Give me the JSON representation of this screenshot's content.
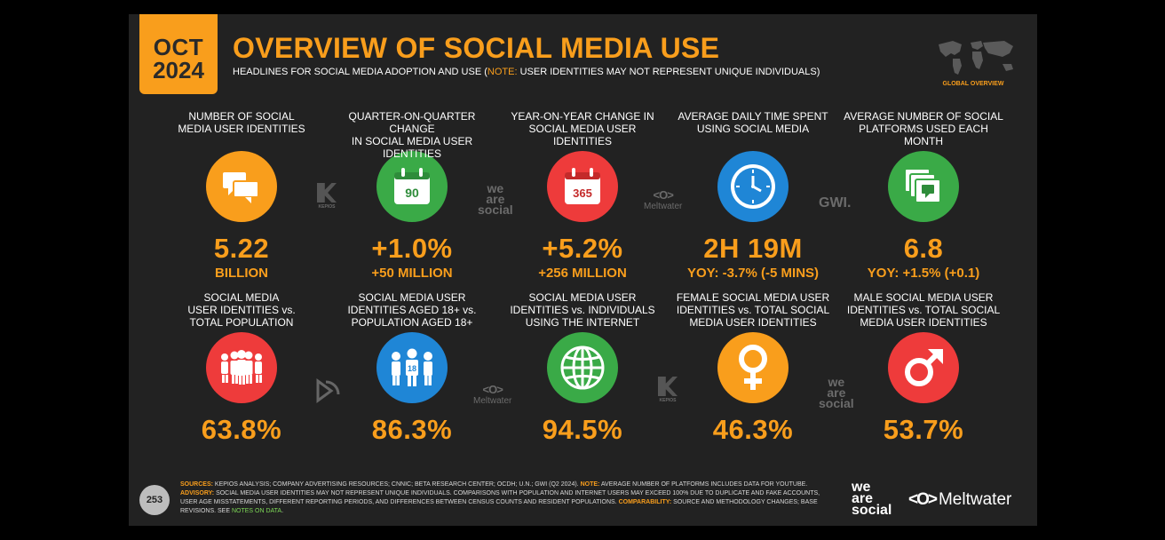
{
  "header": {
    "month": "OCT",
    "year": "2024",
    "title": "OVERVIEW OF SOCIAL MEDIA USE",
    "subtitle_prefix": "HEADLINES FOR SOCIAL MEDIA ADOPTION AND USE (",
    "subtitle_note_label": "NOTE:",
    "subtitle_suffix": " USER IDENTITIES MAY NOT REPRESENT UNIQUE INDIVIDUALS)",
    "map_label": "GLOBAL OVERVIEW"
  },
  "row1": [
    {
      "label": "NUMBER OF SOCIAL\nMEDIA USER IDENTITIES",
      "icon": "chat-bubbles-icon",
      "value": "5.22",
      "sub": "BILLION"
    },
    {
      "label": "QUARTER-ON-QUARTER CHANGE\nIN SOCIAL MEDIA USER IDENTITIES",
      "icon": "calendar-90-icon",
      "icon_text": "90",
      "value": "+1.0%",
      "sub": "+50 MILLION"
    },
    {
      "label": "YEAR-ON-YEAR CHANGE IN\nSOCIAL MEDIA USER IDENTITIES",
      "icon": "calendar-365-icon",
      "icon_text": "365",
      "value": "+5.2%",
      "sub": "+256 MILLION"
    },
    {
      "label": "AVERAGE DAILY TIME SPENT\nUSING SOCIAL MEDIA",
      "icon": "clock-icon",
      "value": "2H 19M",
      "sub": "YOY: -3.7% (-5 MINS)"
    },
    {
      "label": "AVERAGE NUMBER OF SOCIAL\nPLATFORMS USED EACH MONTH",
      "icon": "stacked-screens-icon",
      "value": "6.8",
      "sub": "YOY: +1.5% (+0.1)"
    }
  ],
  "row2": [
    {
      "label": "SOCIAL MEDIA\nUSER IDENTITIES vs.\nTOTAL POPULATION",
      "icon": "crowd-icon",
      "value": "63.8%"
    },
    {
      "label": "SOCIAL MEDIA USER\nIDENTITIES AGED 18+ vs.\nPOPULATION AGED 18+",
      "icon": "adults-18-icon",
      "icon_text": "18",
      "value": "86.3%"
    },
    {
      "label": "SOCIAL MEDIA USER\nIDENTITIES vs. INDIVIDUALS\nUSING THE INTERNET",
      "icon": "globe-icon",
      "value": "94.5%"
    },
    {
      "label": "FEMALE SOCIAL MEDIA USER\nIDENTITIES vs. TOTAL SOCIAL\nMEDIA USER IDENTITIES",
      "icon": "female-symbol-icon",
      "value": "46.3%"
    },
    {
      "label": "MALE SOCIAL MEDIA USER\nIDENTITIES vs. TOTAL SOCIAL\nMEDIA USER IDENTITIES",
      "icon": "male-symbol-icon",
      "value": "53.7%"
    }
  ],
  "watermarks": {
    "kepios": "KEPIOS",
    "wearesocial": [
      "we",
      "are",
      "social"
    ],
    "meltwater_icon": "<O>",
    "meltwater": "Meltwater",
    "gwi": "GWI."
  },
  "footer": {
    "page_number": "253",
    "sources_label": "SOURCES:",
    "sources_text": " KEPIOS ANALYSIS; COMPANY ADVERTISING RESOURCES; CNNIC; BETA RESEARCH CENTER; OCDH; U.N.; GWI (Q2 2024). ",
    "note_label": "NOTE:",
    "note_text": " AVERAGE NUMBER OF PLATFORMS INCLUDES DATA FOR YOUTUBE.",
    "advisory_label": "ADVISORY:",
    "advisory_text": " SOCIAL MEDIA USER IDENTITIES MAY NOT REPRESENT UNIQUE INDIVIDUALS. COMPARISONS WITH POPULATION AND INTERNET USERS MAY EXCEED 100% DUE TO DUPLICATE AND FAKE ACCOUNTS, USER AGE MISSTATEMENTS, DIFFERENT REPORTING PERIODS, AND DIFFERENCES BETWEEN CENSUS COUNTS AND RESIDENT POPULATIONS. ",
    "comparability_label": "COMPARABILITY:",
    "comparability_text": " SOURCE AND METHODOLOGY CHANGES; BASE REVISIONS. SEE ",
    "notes_link": "NOTES ON DATA",
    "notes_end": ".",
    "brand_was": [
      "we",
      "are",
      "social"
    ],
    "brand_melt_icon": "<O>",
    "brand_melt": "Meltwater"
  }
}
